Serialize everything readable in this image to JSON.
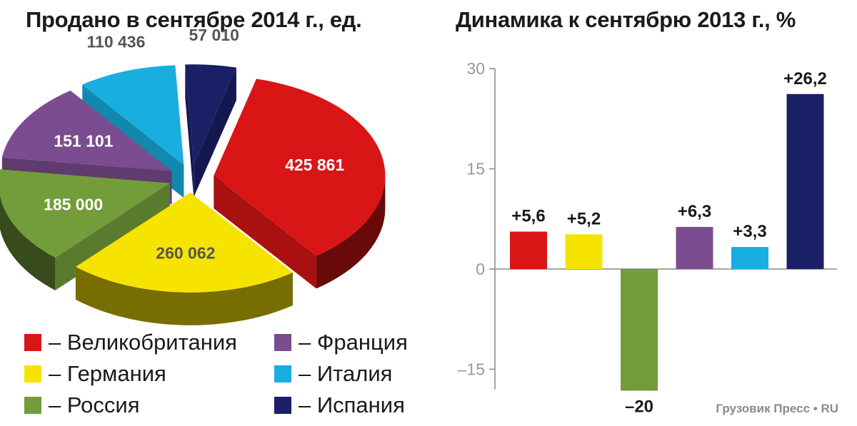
{
  "chart_data": [
    {
      "type": "pie",
      "title": "Продано в сентябре 2014 г., ед.",
      "slices": [
        {
          "name": "Великобритания",
          "value": 425861,
          "label": "425 861",
          "color": "#d91515"
        },
        {
          "name": "Германия",
          "value": 260062,
          "label": "260 062",
          "color": "#f7e300"
        },
        {
          "name": "Россия",
          "value": 185000,
          "label": "185 000",
          "color": "#739c3a"
        },
        {
          "name": "Франция",
          "value": 151101,
          "label": "151 101",
          "color": "#7b4c90"
        },
        {
          "name": "Италия",
          "value": 110436,
          "label": "110 436",
          "color": "#18aee0"
        },
        {
          "name": "Испания",
          "value": 57010,
          "label": "57 010",
          "color": "#1b1f66"
        }
      ],
      "legend": "bottom",
      "style": "3d-exploded"
    },
    {
      "type": "bar",
      "title": "Динамика к сентябрю 2013 г., %",
      "categories": [
        "Великобритания",
        "Германия",
        "Россия",
        "Франция",
        "Италия",
        "Испания"
      ],
      "values": [
        5.6,
        5.2,
        -20,
        6.3,
        3.3,
        26.2
      ],
      "value_labels": [
        "+5,6",
        "+5,2",
        "–20",
        "+6,3",
        "+3,3",
        "+26,2"
      ],
      "colors": [
        "#d91515",
        "#f7e300",
        "#739c3a",
        "#7b4c90",
        "#18aee0",
        "#1b1f66"
      ],
      "ylim": [
        -18,
        30
      ],
      "yticks": [
        30,
        15,
        0,
        -15
      ],
      "ytick_labels": [
        "30",
        "15",
        "0",
        "–15"
      ],
      "grid": false
    }
  ],
  "legend": {
    "items": [
      {
        "label": "– Великобритания",
        "color": "#d91515"
      },
      {
        "label": "– Франция",
        "color": "#7b4c90"
      },
      {
        "label": "– Германия",
        "color": "#f7e300"
      },
      {
        "label": "– Италия",
        "color": "#18aee0"
      },
      {
        "label": "– Россия",
        "color": "#739c3a"
      },
      {
        "label": "– Испания",
        "color": "#1b1f66"
      }
    ]
  },
  "watermark": "Грузовик Пресс • RU"
}
